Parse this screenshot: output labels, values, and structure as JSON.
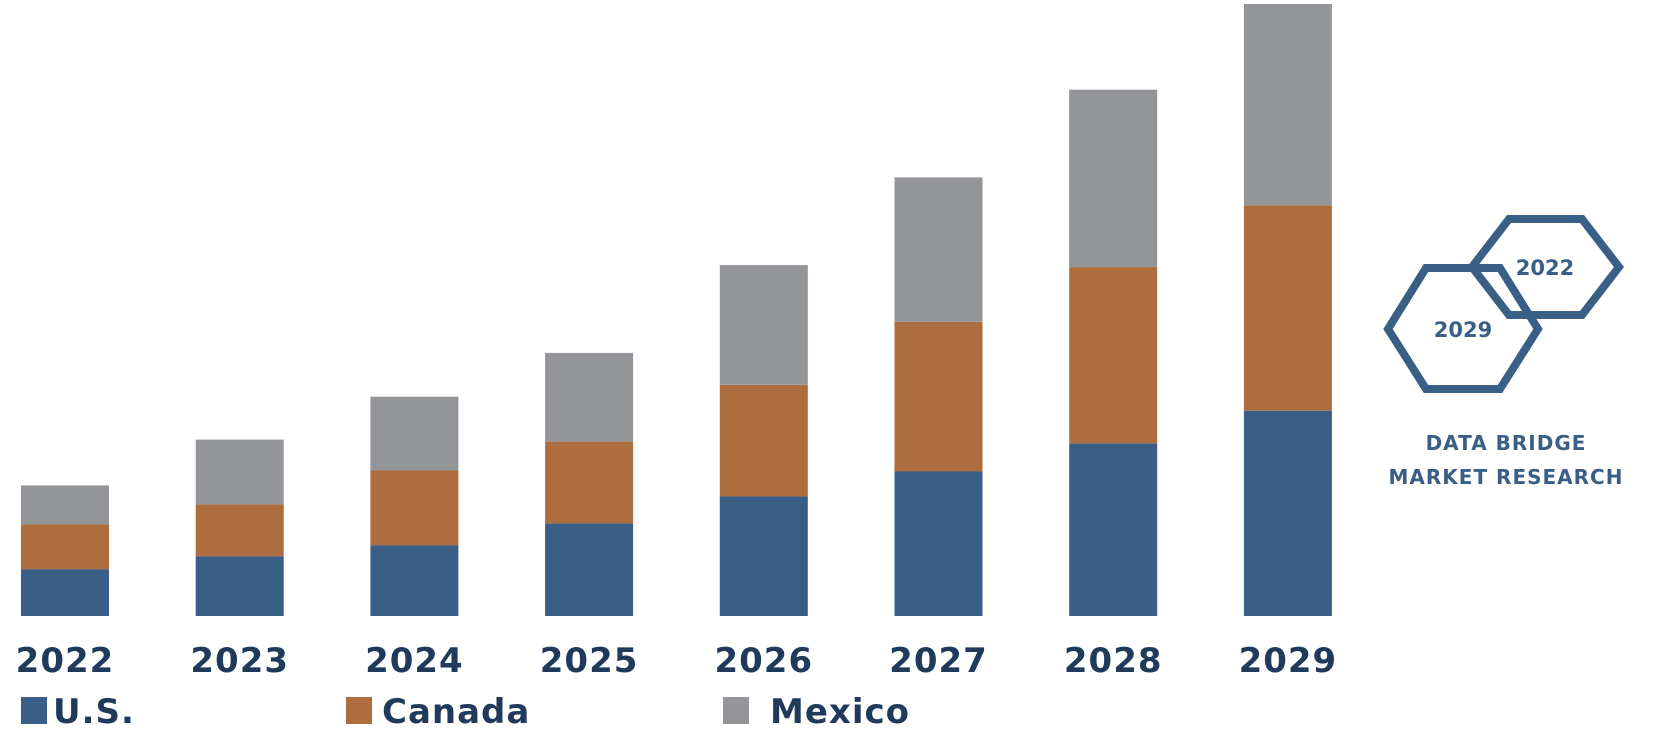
{
  "chart_data": {
    "type": "bar",
    "stacked": true,
    "categories": [
      "2022",
      "2023",
      "2024",
      "2025",
      "2026",
      "2027",
      "2028",
      "2029"
    ],
    "series": [
      {
        "name": "U.S.",
        "color": "#3a5f86",
        "values": [
          47,
          60,
          71,
          93,
          120,
          145,
          173,
          206
        ]
      },
      {
        "name": "Canada",
        "color": "#ad6d3e",
        "values": [
          45,
          52,
          75,
          82,
          112,
          150,
          177,
          206
        ]
      },
      {
        "name": "Mexico",
        "color": "#949598",
        "values": [
          39,
          65,
          74,
          89,
          120,
          145,
          178,
          202
        ]
      }
    ],
    "ylim": [
      0,
      614
    ],
    "legend_position": "bottom",
    "grid": false,
    "label_color": "#1f3a5b"
  },
  "branding": {
    "badge_back": "2022",
    "badge_front": "2029",
    "line1": "DATA BRIDGE",
    "line2": "MARKET RESEARCH",
    "color": "#3a5f86"
  }
}
